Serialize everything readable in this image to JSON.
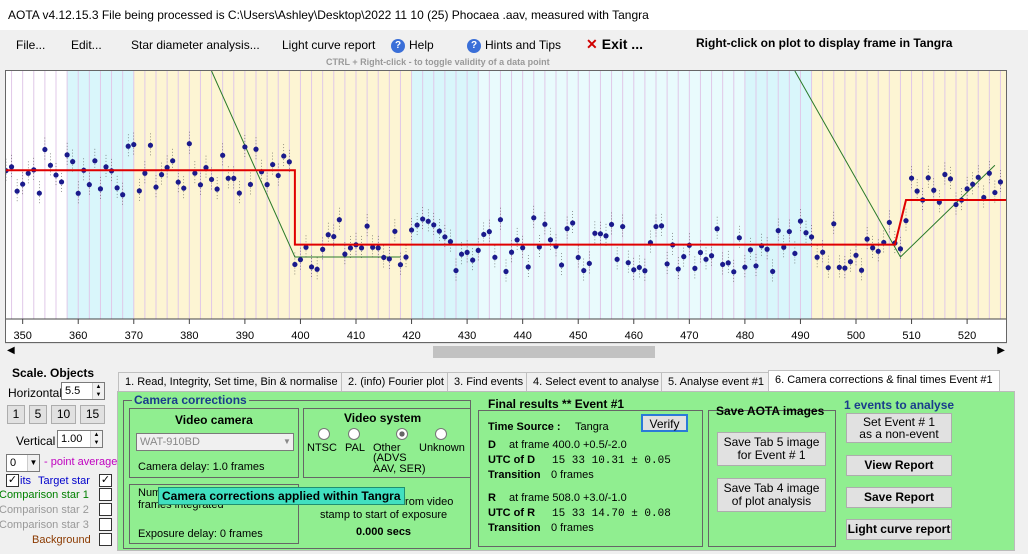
{
  "title": "AOTA v4.12.15.3    File being processed is C:\\Users\\Ashley\\Desktop\\2022 11 10 (25) Phocaea .aav, measured with Tangra",
  "menu": {
    "file": "File...",
    "edit": "Edit...",
    "star_diameter": "Star diameter analysis...",
    "light_curve_report": "Light curve report",
    "help": "Help",
    "hints": "Hints and Tips",
    "exit": "Exit ...",
    "right_click_hint": "Right-click on plot to display frame in Tangra",
    "ctrl_hint": "CTRL + Right-click  -  to toggle validity of a data point"
  },
  "chart_data": {
    "type": "scatter",
    "x_ticks": [
      "350",
      "360",
      "370",
      "380",
      "390",
      "400",
      "410",
      "420",
      "430",
      "440",
      "450",
      "460",
      "470",
      "480",
      "490",
      "500",
      "510",
      "520"
    ],
    "xlim": [
      347,
      527
    ],
    "grid": true,
    "bands": [
      {
        "from": 347,
        "to": 350,
        "color": "#ffffff"
      },
      {
        "from": 350,
        "to": 358,
        "color": "#ffffff"
      },
      {
        "from": 358,
        "to": 370,
        "color": "#d9f6fb"
      },
      {
        "from": 370,
        "to": 420,
        "color": "#fdf5d3"
      },
      {
        "from": 420,
        "to": 432,
        "color": "#d9f6fb"
      },
      {
        "from": 432,
        "to": 480,
        "color": "#e9fbfd"
      },
      {
        "from": 480,
        "to": 492,
        "color": "#d9f6fb"
      },
      {
        "from": 492,
        "to": 527,
        "color": "#fdf5d3"
      }
    ],
    "model_segments": [
      {
        "x": [
          347,
          399
        ],
        "y": 0.6
      },
      {
        "x": [
          399,
          399
        ],
        "y": [
          0.6,
          0.3
        ]
      },
      {
        "x": [
          399,
          507
        ],
        "y": 0.3
      },
      {
        "x": [
          507,
          509
        ],
        "y": [
          0.3,
          0.48
        ]
      },
      {
        "x": [
          509,
          527
        ],
        "y": 0.48
      }
    ]
  },
  "scale_objects": {
    "header": "Scale.  Objects",
    "horizontal_label": "Horizontal",
    "horizontal_value": "5.5",
    "buttons": [
      "1",
      "5",
      "10",
      "15"
    ],
    "vertical_label": "Vertical",
    "vertical_value": "1.00",
    "point_average_value": "0",
    "point_average_label": "- point average",
    "target_prefix": "its",
    "target_star": "Target star",
    "comparison1": "Comparison star 1",
    "comparison2": "Comparison star 2",
    "comparison3": "Comparison star 3",
    "background": "Background",
    "target_color": "#0000cc",
    "comparison1_color": "#008000",
    "background_color": "#8b3a00"
  },
  "tabs": [
    "1.  Read, Integrity, Set time, Bin & normalise",
    "2. (info)  Fourier plot",
    "3. Find events",
    "4. Select event to analyse",
    "5. Analyse event #1",
    "6. Camera corrections & final times Event #1"
  ],
  "camera": {
    "title": "Camera corrections",
    "video_camera_title": "Video camera",
    "camera_model": "WAT-910BD",
    "camera_delay": "Camera delay: 1.0 frames",
    "num_frames_label": "Num",
    "frames_integrated": "frames integrated",
    "tooltip": "Camera corrections applied within Tangra",
    "exposure_delay": "Exposure delay: 0 frames",
    "from_video": "from video",
    "stamp_text": "stamp to start of exposure",
    "secs": "0.000 secs",
    "video_system_title": "Video system",
    "video_systems": [
      "NTSC",
      "PAL",
      "Other",
      "Unknown"
    ],
    "other_sub": "(ADVS\nAAV, SER)"
  },
  "results": {
    "title": "Final results  **  Event #1",
    "verify": "Verify",
    "time_source_label": "Time Source :",
    "time_source": "Tangra",
    "d_label": "D",
    "d_frame": "at frame 400.0  +0.5/-2.0",
    "utc_d_label": "UTC of D",
    "utc_d": "15 33 10.31  ± 0.05",
    "transition_label": "Transition",
    "transition_d": "0 frames",
    "r_label": "R",
    "r_frame": "at frame 508.0  +3.0/-1.0",
    "utc_r_label": "UTC of R",
    "utc_r": "15 33 14.70  ± 0.08",
    "transition_r": "0 frames"
  },
  "save": {
    "title": "Save AOTA images",
    "tab5": "Save Tab 5 image\nfor Event # 1",
    "tab4": "Save Tab 4 image\nof plot analysis"
  },
  "events": {
    "title": "1  events to analyse",
    "set_event": "Set Event # 1\nas a non-event",
    "view_report": "View Report",
    "save_report": "Save Report",
    "light_curve_report": "Light curve report"
  }
}
